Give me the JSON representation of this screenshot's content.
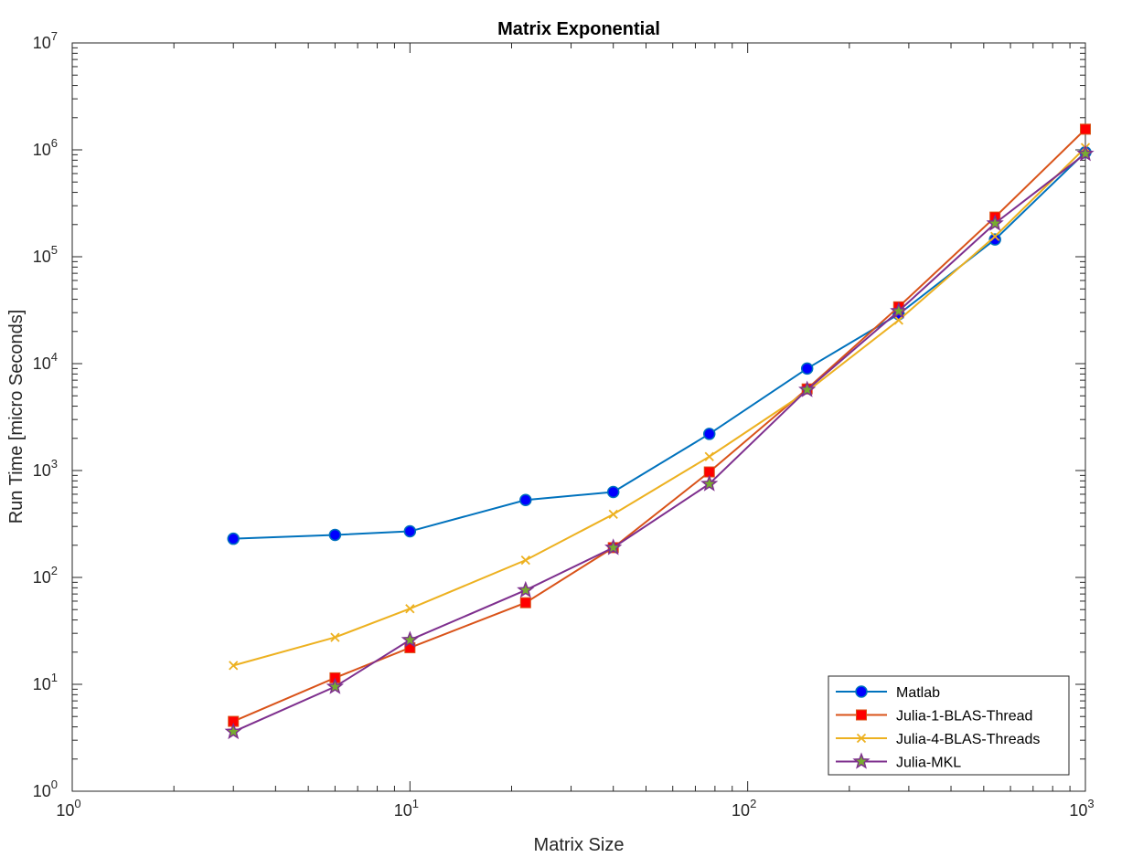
{
  "chart_data": {
    "type": "line",
    "title": "Matrix Exponential",
    "xlabel": "Matrix Size",
    "ylabel": "Run Time  [micro Seconds]",
    "xscale": "log",
    "yscale": "log",
    "xlim": [
      1,
      1000
    ],
    "ylim": [
      1,
      10000000
    ],
    "grid": false,
    "legend_position": "bottom-right",
    "x_ticks": [
      {
        "value": 1,
        "base": "10",
        "exp": "0"
      },
      {
        "value": 10,
        "base": "10",
        "exp": "1"
      },
      {
        "value": 100,
        "base": "10",
        "exp": "2"
      },
      {
        "value": 1000,
        "base": "10",
        "exp": "3"
      }
    ],
    "y_ticks": [
      {
        "value": 1,
        "base": "10",
        "exp": "0"
      },
      {
        "value": 10,
        "base": "10",
        "exp": "1"
      },
      {
        "value": 100,
        "base": "10",
        "exp": "2"
      },
      {
        "value": 1000,
        "base": "10",
        "exp": "3"
      },
      {
        "value": 10000,
        "base": "10",
        "exp": "4"
      },
      {
        "value": 100000,
        "base": "10",
        "exp": "5"
      },
      {
        "value": 1000000,
        "base": "10",
        "exp": "6"
      },
      {
        "value": 10000000,
        "base": "10",
        "exp": "7"
      }
    ],
    "x": [
      3,
      6,
      10,
      22,
      40,
      77,
      150,
      280,
      540,
      1000
    ],
    "series": [
      {
        "name": "Matlab",
        "color": "#0072bd",
        "marker": "circle",
        "marker_fill": "#0000ff",
        "values": [
          230,
          250,
          270,
          530,
          630,
          2200,
          9000,
          29000,
          145000,
          950000
        ]
      },
      {
        "name": "Julia-1-BLAS-Thread",
        "color": "#d95319",
        "marker": "square",
        "marker_fill": "#ff0000",
        "values": [
          4.5,
          11.5,
          22,
          58,
          190,
          970,
          5800,
          34000,
          235000,
          1560000
        ]
      },
      {
        "name": "Julia-4-BLAS-Threads",
        "color": "#edb120",
        "marker": "x",
        "marker_fill": "#edb120",
        "values": [
          15,
          27.5,
          51,
          145,
          390,
          1350,
          5500,
          25500,
          155000,
          1050000
        ]
      },
      {
        "name": "Julia-MKL",
        "color": "#7e2f8e",
        "marker": "star",
        "marker_fill": "#77ac30",
        "values": [
          3.6,
          9.5,
          26,
          76,
          190,
          750,
          5700,
          31000,
          205000,
          920000
        ]
      }
    ]
  }
}
